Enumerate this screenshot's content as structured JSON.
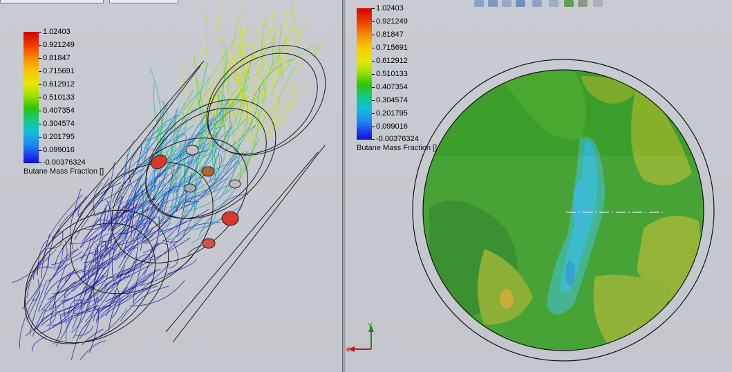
{
  "legend": {
    "values": [
      "1.02403",
      "0.921249",
      "0.81847",
      "0.715691",
      "0.612912",
      "0.510133",
      "0.407354",
      "0.304574",
      "0.201795",
      "0.099016",
      "-0.00376324"
    ],
    "title": "Butane Mass Fraction []"
  },
  "legend_right": {
    "values": [
      "1.02403",
      "0.921249",
      "0.81847",
      "0.715691",
      "0.612912",
      "0.510133",
      "0.407354",
      "0.304574",
      "0.201795",
      "0.099016",
      "-0.00376324"
    ],
    "title": "Butane Mass Fraction []"
  },
  "triad": {
    "y_label": "Y",
    "x_label": "X"
  },
  "colors": {
    "viewport_bg": "#c6c9cf",
    "field_green": "#3a9a28",
    "low_cyan": "#2fb6c8",
    "streamline_blue": "#1c1c9c"
  }
}
